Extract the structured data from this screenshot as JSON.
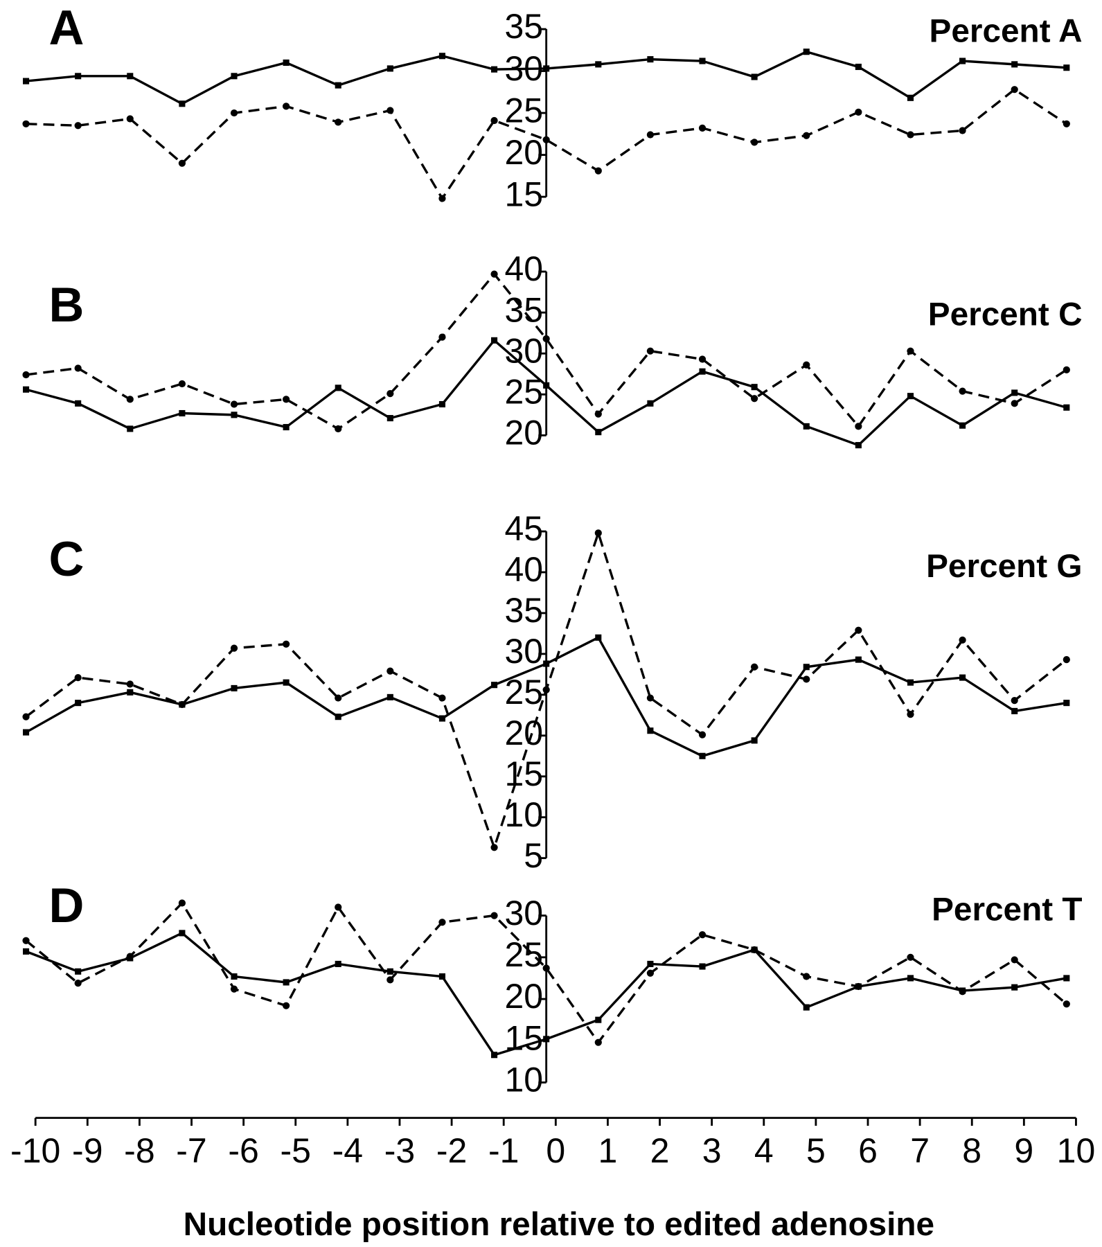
{
  "chart_data": [
    {
      "type": "line",
      "panel_label": "A",
      "title": "Percent A",
      "x": [
        -10,
        -9,
        -8,
        -7,
        -6,
        -5,
        -4,
        -3,
        -2,
        -1,
        0,
        1,
        2,
        3,
        4,
        5,
        6,
        7,
        8,
        9,
        10
      ],
      "xlim": [
        -10,
        10
      ],
      "ylim": [
        15,
        35
      ],
      "yticks": [
        15,
        20,
        25,
        30,
        35
      ],
      "series": [
        {
          "color": "#000000",
          "linestyle": "solid",
          "marker": "square",
          "values": [
            28.8,
            29.4,
            29.4,
            26.1,
            29.4,
            31.0,
            28.3,
            30.3,
            31.8,
            30.2,
            30.3,
            30.8,
            31.4,
            31.2,
            29.3,
            32.3,
            30.5,
            26.8,
            31.2,
            30.8,
            30.4
          ]
        },
        {
          "color": "#000000",
          "linestyle": "dashed",
          "marker": "circle",
          "values": [
            23.7,
            23.5,
            24.3,
            19.0,
            25.0,
            25.8,
            23.9,
            25.3,
            14.8,
            24.1,
            21.8,
            18.1,
            22.4,
            23.2,
            21.5,
            22.3,
            25.1,
            22.4,
            22.9,
            27.8,
            23.7
          ]
        }
      ]
    },
    {
      "type": "line",
      "panel_label": "B",
      "title": "Percent C",
      "x": [
        -10,
        -9,
        -8,
        -7,
        -6,
        -5,
        -4,
        -3,
        -2,
        -1,
        0,
        1,
        2,
        3,
        4,
        5,
        6,
        7,
        8,
        9,
        10
      ],
      "xlim": [
        -10,
        10
      ],
      "ylim": [
        20,
        40
      ],
      "yticks": [
        20,
        25,
        30,
        35,
        40
      ],
      "series": [
        {
          "color": "#000000",
          "linestyle": "solid",
          "marker": "square",
          "values": [
            25.6,
            23.9,
            20.8,
            22.7,
            22.5,
            21.0,
            25.8,
            22.1,
            23.8,
            31.6,
            26.1,
            20.4,
            23.9,
            27.8,
            25.9,
            21.1,
            18.8,
            24.8,
            21.2,
            25.2,
            23.4
          ]
        },
        {
          "color": "#000000",
          "linestyle": "dashed",
          "marker": "circle",
          "values": [
            27.4,
            28.2,
            24.4,
            26.3,
            23.8,
            24.4,
            20.8,
            25.1,
            32.0,
            39.7,
            31.8,
            22.6,
            30.3,
            29.3,
            24.5,
            28.6,
            21.1,
            30.3,
            25.4,
            23.9,
            28.0
          ]
        }
      ]
    },
    {
      "type": "line",
      "panel_label": "C",
      "title": "Percent G",
      "x": [
        -10,
        -9,
        -8,
        -7,
        -6,
        -5,
        -4,
        -3,
        -2,
        -1,
        0,
        1,
        2,
        3,
        4,
        5,
        6,
        7,
        8,
        9,
        10
      ],
      "xlim": [
        -10,
        10
      ],
      "ylim": [
        5,
        45
      ],
      "yticks": [
        5,
        10,
        15,
        20,
        25,
        30,
        35,
        40,
        45
      ],
      "series": [
        {
          "color": "#000000",
          "linestyle": "solid",
          "marker": "square",
          "values": [
            20.4,
            24.0,
            25.3,
            23.8,
            25.8,
            26.5,
            22.3,
            24.7,
            22.1,
            26.2,
            28.8,
            32.0,
            20.6,
            17.5,
            19.4,
            28.4,
            29.3,
            26.5,
            27.1,
            23.0,
            24.0
          ]
        },
        {
          "color": "#000000",
          "linestyle": "dashed",
          "marker": "circle",
          "values": [
            22.3,
            27.1,
            26.3,
            23.8,
            30.7,
            31.2,
            24.6,
            27.9,
            24.6,
            6.3,
            25.6,
            44.8,
            24.6,
            20.1,
            28.4,
            26.9,
            32.9,
            22.6,
            31.7,
            24.3,
            29.3
          ]
        }
      ]
    },
    {
      "type": "line",
      "panel_label": "D",
      "title": "Percent T",
      "x": [
        -10,
        -9,
        -8,
        -7,
        -6,
        -5,
        -4,
        -3,
        -2,
        -1,
        0,
        1,
        2,
        3,
        4,
        5,
        6,
        7,
        8,
        9,
        10
      ],
      "xlim": [
        -10,
        10
      ],
      "ylim": [
        10,
        30
      ],
      "yticks": [
        10,
        15,
        20,
        25,
        30
      ],
      "xticks": [
        -10,
        -9,
        -8,
        -7,
        -6,
        -5,
        -4,
        -3,
        -2,
        -1,
        0,
        1,
        2,
        3,
        4,
        5,
        6,
        7,
        8,
        9,
        10
      ],
      "x_label": "Nucleotide position relative to edited adenosine",
      "series": [
        {
          "color": "#000000",
          "linestyle": "solid",
          "marker": "square",
          "values": [
            25.7,
            23.3,
            24.9,
            27.9,
            22.7,
            22.0,
            24.2,
            23.3,
            22.7,
            13.3,
            15.2,
            17.5,
            24.2,
            23.9,
            25.9,
            19.0,
            21.5,
            22.5,
            21.0,
            21.4,
            22.5
          ]
        },
        {
          "color": "#000000",
          "linestyle": "dashed",
          "marker": "circle",
          "values": [
            27.0,
            21.9,
            25.1,
            31.5,
            21.2,
            19.2,
            31.0,
            22.3,
            29.2,
            30.0,
            23.7,
            14.8,
            23.1,
            27.7,
            25.9,
            22.7,
            21.5,
            25.0,
            20.9,
            24.7,
            19.4
          ]
        }
      ]
    }
  ]
}
